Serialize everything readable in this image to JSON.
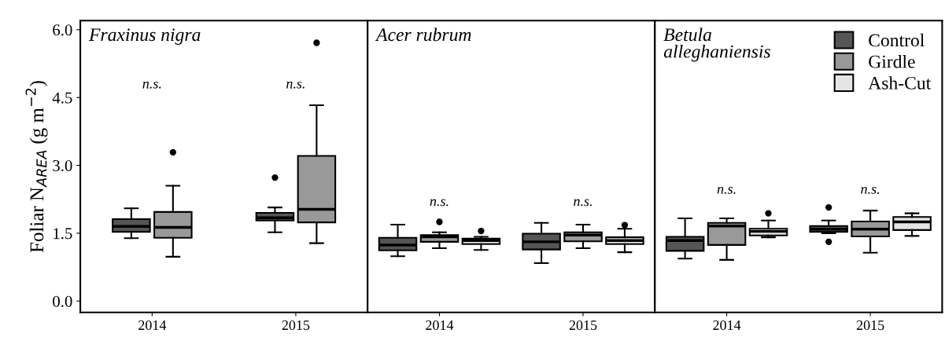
{
  "chart_data": [
    {
      "type": "box",
      "title": "Fraxinus nigra",
      "ylabel": "Foliar N$_{AREA}$ (g m$^{−2}$)",
      "categories": [
        "2014",
        "2015"
      ],
      "ylim": [
        -0.25,
        6.2
      ],
      "yticks": [
        {
          "value": 0,
          "label": "0.0"
        },
        1.5,
        {
          "value": 3,
          "label": "3.0"
        },
        4.5,
        {
          "value": 6,
          "label": "6.0"
        }
      ],
      "grid": false,
      "annotations": [
        "n.s.",
        "n.s."
      ],
      "series": [
        {
          "color": "#555555",
          "boxes": [
            {
              "low": 1.39,
              "q1": 1.53,
              "median": 1.65,
              "q3": 1.81,
              "high": 2.05
            },
            {
              "low": 1.52,
              "q1": 1.78,
              "median": 1.84,
              "q3": 1.95,
              "high": 2.07,
              "outliers": [
                2.73
              ]
            }
          ]
        },
        {
          "color": "#999999",
          "boxes": [
            {
              "low": 0.98,
              "q1": 1.4,
              "median": 1.63,
              "q3": 1.97,
              "high": 2.55,
              "outliers": [
                3.29
              ]
            },
            {
              "low": 1.28,
              "q1": 1.74,
              "median": 2.03,
              "q3": 3.21,
              "high": 4.33,
              "outliers": [
                5.71
              ]
            }
          ]
        }
      ]
    },
    {
      "type": "box",
      "title": "Acer rubrum",
      "categories": [
        "2014",
        "2015"
      ],
      "ylim": [
        -0.25,
        6.2
      ],
      "tick_labels": "x",
      "grid": false,
      "annotations": [
        "n.s.",
        "n.s."
      ],
      "series": [
        {
          "color": "#555555",
          "boxes": [
            {
              "low": 0.99,
              "q1": 1.12,
              "median": 1.24,
              "q3": 1.4,
              "high": 1.69
            },
            {
              "low": 0.84,
              "q1": 1.14,
              "median": 1.31,
              "q3": 1.49,
              "high": 1.73
            }
          ]
        },
        {
          "color": "#999999",
          "boxes": [
            {
              "low": 1.17,
              "q1": 1.31,
              "median": 1.42,
              "q3": 1.46,
              "high": 1.52,
              "outliers": [
                1.75
              ]
            },
            {
              "low": 1.17,
              "q1": 1.32,
              "median": 1.46,
              "q3": 1.52,
              "high": 1.69
            }
          ]
        },
        {
          "color": "#e5e5e5",
          "boxes": [
            {
              "low": 1.13,
              "q1": 1.26,
              "median": 1.34,
              "q3": 1.38,
              "high": 1.42,
              "outliers": [
                1.55
              ]
            },
            {
              "low": 1.08,
              "q1": 1.26,
              "median": 1.34,
              "q3": 1.41,
              "high": 1.6,
              "outliers": [
                1.68
              ]
            }
          ]
        }
      ]
    },
    {
      "type": "box",
      "title": "Betula\nalleghaniensis",
      "categories": [
        "2014",
        "2015"
      ],
      "ylim": [
        -0.25,
        6.2
      ],
      "tick_labels": "x",
      "grid": false,
      "legend": "top right",
      "annotations": [
        "n.s.",
        "n.s."
      ],
      "series": [
        {
          "name": "Control",
          "color": "#555555",
          "boxes": [
            {
              "low": 0.94,
              "q1": 1.11,
              "median": 1.34,
              "q3": 1.42,
              "high": 1.83
            },
            {
              "low": 1.5,
              "q1": 1.53,
              "median": 1.59,
              "q3": 1.66,
              "high": 1.78,
              "outliers": [
                2.07,
                1.31
              ]
            }
          ]
        },
        {
          "name": "Girdle",
          "color": "#999999",
          "boxes": [
            {
              "low": 0.91,
              "q1": 1.24,
              "median": 1.66,
              "q3": 1.73,
              "high": 1.83
            },
            {
              "low": 1.07,
              "q1": 1.43,
              "median": 1.59,
              "q3": 1.76,
              "high": 2.0
            }
          ]
        },
        {
          "name": "Ash-Cut",
          "color": "#e5e5e5",
          "boxes": [
            {
              "low": 1.41,
              "q1": 1.45,
              "median": 1.54,
              "q3": 1.6,
              "high": 1.78,
              "outliers": [
                1.94
              ]
            },
            {
              "low": 1.44,
              "q1": 1.57,
              "median": 1.75,
              "q3": 1.86,
              "high": 1.94
            }
          ]
        }
      ]
    }
  ]
}
